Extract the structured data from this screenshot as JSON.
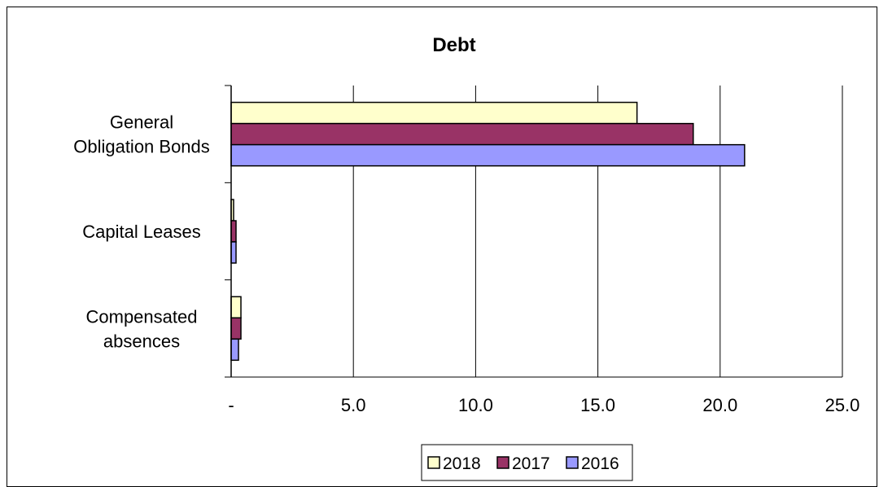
{
  "chart_data": {
    "type": "bar",
    "orientation": "horizontal",
    "title": "Debt",
    "xlabel": "",
    "ylabel": "",
    "categories": [
      [
        "General",
        "Obligation Bonds"
      ],
      [
        "Capital Leases"
      ],
      [
        "Compensated",
        "absences"
      ]
    ],
    "series": [
      {
        "name": "2018",
        "color": "#FFFFCC",
        "values": [
          16.6,
          0.1,
          0.4
        ]
      },
      {
        "name": "2017",
        "color": "#993366",
        "values": [
          18.9,
          0.2,
          0.4
        ]
      },
      {
        "name": "2016",
        "color": "#9999FF",
        "values": [
          21.0,
          0.2,
          0.3
        ]
      }
    ],
    "xlim": [
      0,
      25
    ],
    "xticks": [
      0,
      5,
      10,
      15,
      20,
      25
    ],
    "xtick_labels": [
      "-",
      "5.0",
      "10.0",
      "15.0",
      "20.0",
      "25.0"
    ],
    "grid": "vertical",
    "legend_position": "bottom"
  }
}
